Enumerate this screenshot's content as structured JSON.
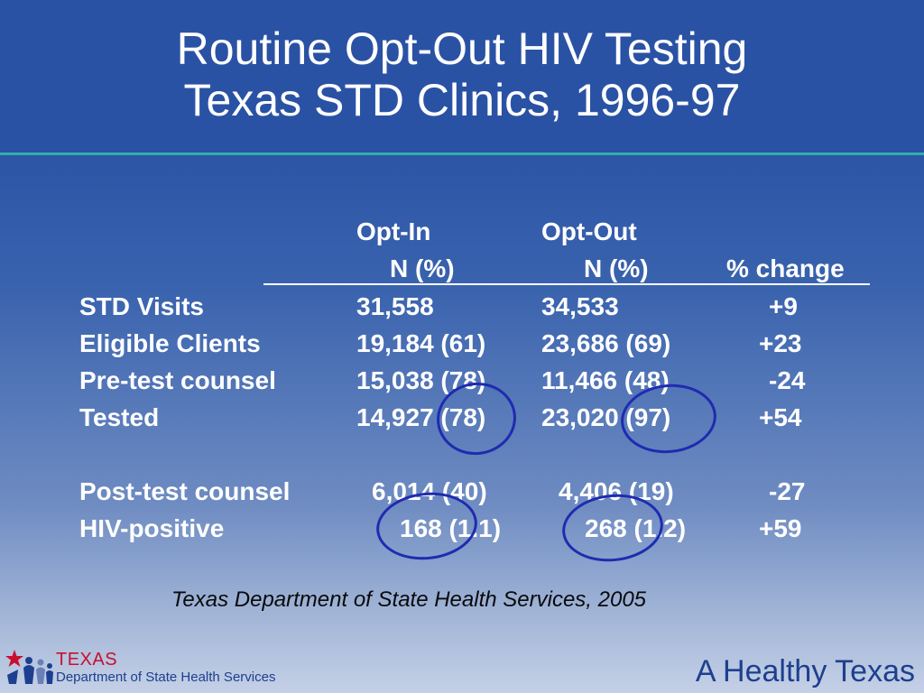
{
  "slide": {
    "title_line1": "Routine Opt-Out HIV Testing",
    "title_line2": "Texas STD Clinics, 1996-97"
  },
  "table": {
    "headers": {
      "optin_top": "Opt-In",
      "optout_top": "Opt-Out",
      "optin_sub": "N (%)",
      "optout_sub": "N (%)",
      "change": "% change"
    },
    "rows": [
      {
        "label": "STD Visits",
        "optin": "31,558",
        "optout": "34,533",
        "change": "+9"
      },
      {
        "label": "Eligible Clients",
        "optin": "19,184 (61)",
        "optout": "23,686 (69)",
        "change": "+23"
      },
      {
        "label": "Pre-test counsel",
        "optin": "15,038 (78)",
        "optout": "11,466 (48)",
        "change": "-24"
      },
      {
        "label": "Tested",
        "optin": "14,927 (78)",
        "optout": "23,020 (97)",
        "change": "+54"
      },
      {
        "label": "Post-test counsel",
        "optin": "6,014 (40)",
        "optout": "4,406 (19)",
        "change": "-27"
      },
      {
        "label": "HIV-positive",
        "optin": "168 (1.1)",
        "optout": "268 (1.2)",
        "change": "+59"
      }
    ]
  },
  "source": "Texas Department of State Health Services, 2005",
  "logo": {
    "texas": "TEXAS",
    "dept": "Department of State Health Services"
  },
  "tagline": "A Healthy Texas",
  "colors": {
    "background": "#2b54a6",
    "accent_rule": "#2fb0a8",
    "circle": "#1f2bb0",
    "logo_red": "#c8102e",
    "logo_blue": "#1d3f8f"
  }
}
